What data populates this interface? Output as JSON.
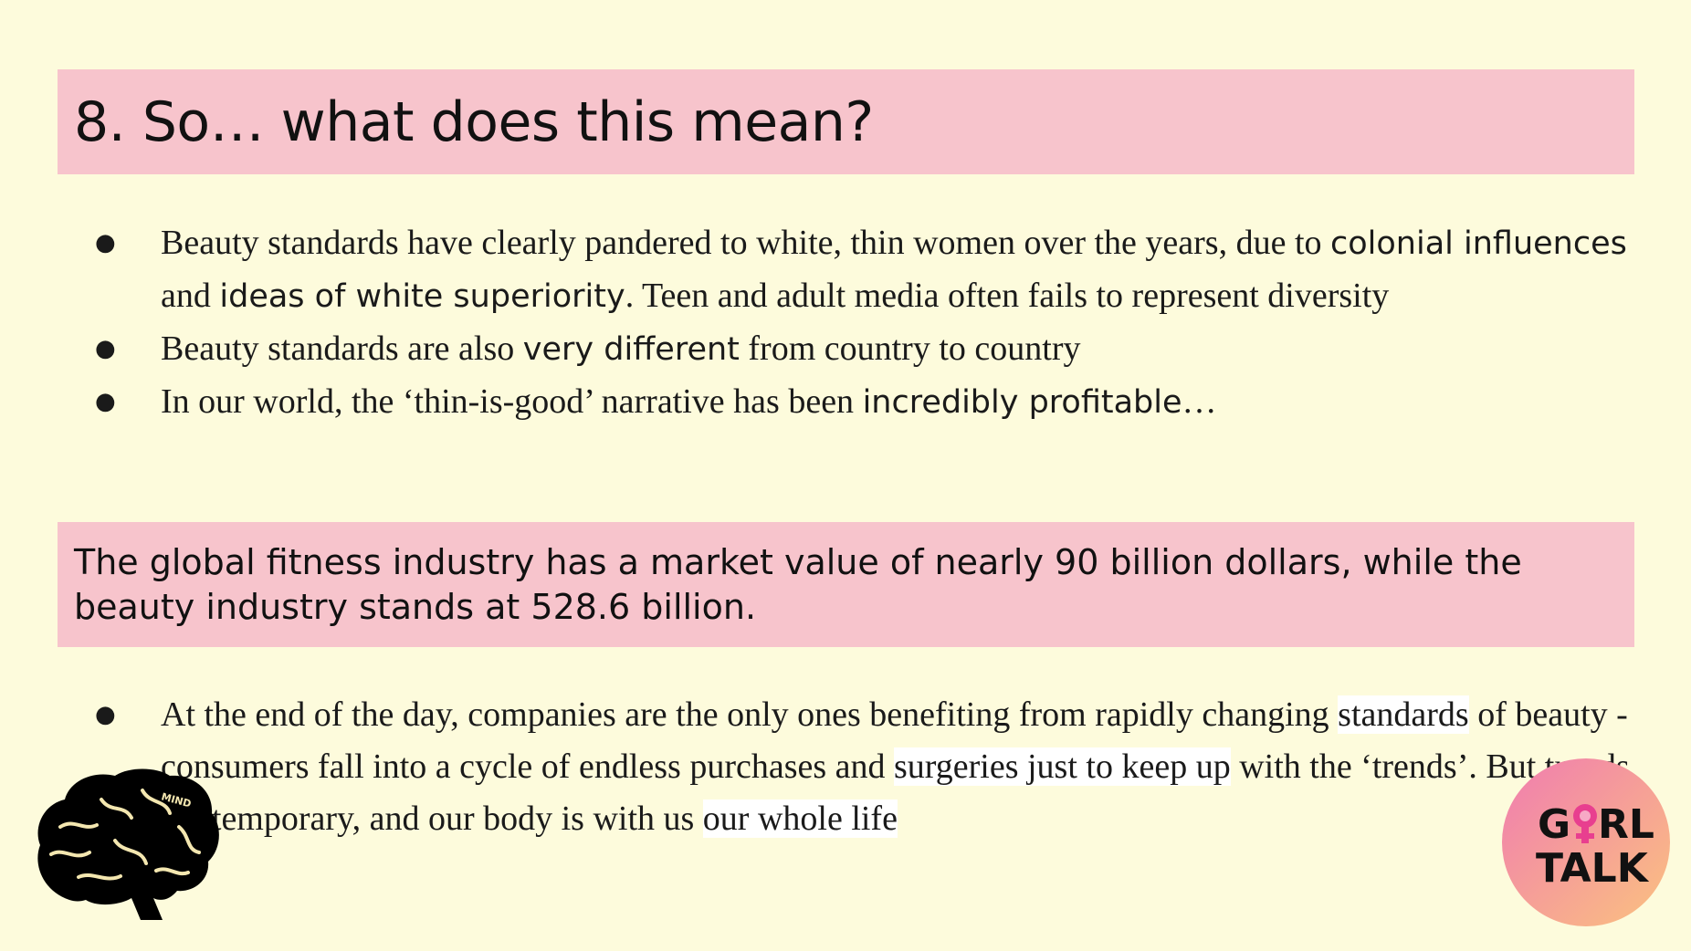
{
  "title": "8. So… what does this mean?",
  "bullets_top": [
    {
      "parts": [
        {
          "text": "Beauty standards have clearly pandered to white, thin women over the years, due to ",
          "style": "plain"
        },
        {
          "text": "colonial influences",
          "style": "em"
        },
        {
          "text": " and ",
          "style": "plain"
        },
        {
          "text": "ideas of white superiority",
          "style": "em"
        },
        {
          "text": ". Teen and adult media often fails to represent diversity",
          "style": "plain"
        }
      ]
    },
    {
      "parts": [
        {
          "text": "Beauty standards are also ",
          "style": "plain"
        },
        {
          "text": "very different",
          "style": "em"
        },
        {
          "text": " from country to country",
          "style": "plain"
        }
      ]
    },
    {
      "parts": [
        {
          "text": "In our world, the ‘thin-is-good’ narrative has been ",
          "style": "plain"
        },
        {
          "text": "incredibly profitable",
          "style": "em"
        },
        {
          "text": "…",
          "style": "plain"
        }
      ]
    }
  ],
  "stat": "The global fitness industry has a market value of nearly 90 billion dollars, while the beauty industry stands at 528.6 billion.",
  "bullets_bottom": [
    {
      "parts": [
        {
          "text": "At the end of the day, companies are the only ones benefiting from rapidly changing ",
          "style": "plain"
        },
        {
          "text": "standards",
          "style": "hl"
        },
        {
          "text": " of beauty - consumers fall into a cycle of endless purchases and ",
          "style": "plain"
        },
        {
          "text": "surgeries just to keep up",
          "style": "hl"
        },
        {
          "text": " with the ‘trends’. But trends are temporary, and our body is with us ",
          "style": "plain"
        },
        {
          "text": "our whole life",
          "style": "hl"
        }
      ]
    }
  ],
  "brain_label": "MIND",
  "logo": {
    "line1": "G",
    "line1b": "RL",
    "line2": "TALK"
  },
  "colors": {
    "background": "#fdfbdc",
    "pink_bar": "#f7c4cc",
    "logo_pink": "#f59ab6",
    "logo_orange": "#f9b98a"
  }
}
